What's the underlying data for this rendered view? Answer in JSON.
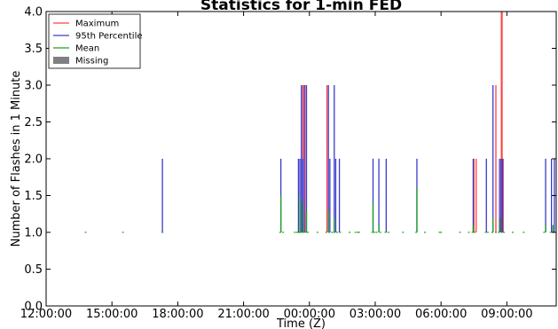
{
  "chart_data": {
    "type": "line",
    "title": "Statistics for 1-min FED",
    "xlabel": "Time (Z)",
    "ylabel": "Number of Flashes in 1 Minute",
    "ylim": [
      0.0,
      4.0
    ],
    "xlim": [
      "12:00:00",
      "11:15:00"
    ],
    "x_ticks": [
      "12:00:00",
      "15:00:00",
      "18:00:00",
      "21:00:00",
      "00:00:00",
      "03:00:00",
      "06:00:00",
      "09:00:00"
    ],
    "y_ticks": [
      "0.0",
      "0.5",
      "1.0",
      "1.5",
      "2.0",
      "2.5",
      "3.0",
      "3.5",
      "4.0"
    ],
    "grid": false,
    "legend_position": "top-left",
    "legend": [
      {
        "label": "Maximum",
        "color": "#ff4040",
        "kind": "line"
      },
      {
        "label": "95th Percentile",
        "color": "#3a3acc",
        "kind": "line"
      },
      {
        "label": "Mean",
        "color": "#20a020",
        "kind": "line"
      },
      {
        "label": "Missing",
        "color": "#808080",
        "kind": "patch"
      }
    ],
    "series": [
      {
        "name": "Maximum",
        "color": "#ff4040",
        "points": [
          [
            "23:42",
            3.0
          ],
          [
            "23:48",
            3.0
          ],
          [
            "00:48",
            3.0
          ],
          [
            "07:30",
            2.0
          ],
          [
            "07:36",
            2.0
          ],
          [
            "08:30",
            3.0
          ],
          [
            "08:45",
            4.0
          ],
          [
            "08:47",
            4.0
          ],
          [
            "08:50",
            2.0
          ]
        ]
      },
      {
        "name": "95th Percentile",
        "color": "#3a3acc",
        "points": [
          [
            "17:18",
            2.0
          ],
          [
            "22:42",
            2.0
          ],
          [
            "23:30",
            2.0
          ],
          [
            "23:34",
            2.0
          ],
          [
            "23:38",
            3.0
          ],
          [
            "23:42",
            2.0
          ],
          [
            "23:46",
            3.0
          ],
          [
            "23:52",
            3.0
          ],
          [
            "00:52",
            3.0
          ],
          [
            "00:56",
            2.0
          ],
          [
            "01:08",
            3.0
          ],
          [
            "01:12",
            2.0
          ],
          [
            "01:22",
            2.0
          ],
          [
            "02:54",
            2.0
          ],
          [
            "03:10",
            2.0
          ],
          [
            "03:30",
            2.0
          ],
          [
            "04:54",
            2.0
          ],
          [
            "07:28",
            2.0
          ],
          [
            "08:04",
            2.0
          ],
          [
            "08:22",
            3.0
          ],
          [
            "08:40",
            2.0
          ],
          [
            "08:44",
            2.0
          ],
          [
            "08:48",
            2.0
          ],
          [
            "10:46",
            2.0
          ],
          [
            "11:02",
            2.0
          ],
          [
            "11:10",
            2.0
          ]
        ]
      },
      {
        "name": "Mean",
        "color": "#20a020",
        "points": [
          [
            "13:48",
            1.0
          ],
          [
            "15:30",
            1.0
          ],
          [
            "17:18",
            1.0
          ],
          [
            "22:42",
            1.5
          ],
          [
            "23:34",
            1.5
          ],
          [
            "23:40",
            1.4
          ],
          [
            "23:52",
            1.3
          ],
          [
            "00:52",
            1.3
          ],
          [
            "01:08",
            1.2
          ],
          [
            "02:54",
            1.4
          ],
          [
            "03:10",
            1.1
          ],
          [
            "04:54",
            1.6
          ],
          [
            "07:28",
            1.1
          ],
          [
            "08:22",
            1.2
          ],
          [
            "08:42",
            1.2
          ],
          [
            "10:46",
            1.1
          ],
          [
            "11:06",
            1.1
          ]
        ],
        "baseline_ticks": [
          "13:48",
          "15:30",
          "17:18",
          "22:40",
          "22:48",
          "23:20",
          "23:26",
          "23:30",
          "23:34",
          "23:38",
          "23:44",
          "23:50",
          "23:56",
          "00:22",
          "00:46",
          "00:54",
          "01:02",
          "01:08",
          "01:16",
          "01:24",
          "01:50",
          "02:06",
          "02:12",
          "02:16",
          "02:52",
          "02:58",
          "03:04",
          "03:14",
          "03:28",
          "03:36",
          "04:16",
          "04:52",
          "05:16",
          "05:56",
          "06:00",
          "06:52",
          "07:16",
          "07:26",
          "07:32",
          "08:02",
          "08:08",
          "08:20",
          "08:30",
          "08:38",
          "08:46",
          "08:52",
          "09:16",
          "09:46",
          "10:42",
          "11:00",
          "11:08"
        ]
      }
    ]
  }
}
